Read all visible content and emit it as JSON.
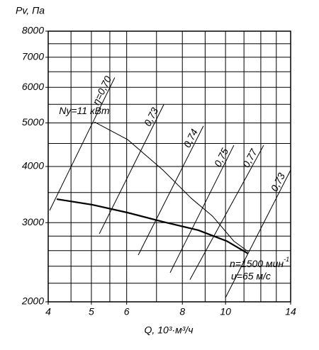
{
  "chart_data": {
    "type": "line",
    "y_label": "Pv, Па",
    "x_label": "Q, 10³·м³/ч",
    "xlog": true,
    "ylog": true,
    "grid": true,
    "xlim": [
      4,
      14
    ],
    "ylim": [
      2000,
      8000
    ],
    "xticks": [
      4,
      5,
      6,
      8,
      10,
      14
    ],
    "yticks": [
      2000,
      3000,
      4000,
      5000,
      6000,
      7000,
      8000
    ],
    "xgrid": [
      4,
      4.5,
      5,
      5.5,
      6,
      7,
      8,
      9,
      10,
      11,
      12,
      13,
      14
    ],
    "ygrid": [
      2000,
      2200,
      2400,
      2600,
      2800,
      3000,
      3500,
      4000,
      4500,
      5000,
      5500,
      6000,
      6500,
      7000,
      7500,
      8000
    ],
    "series": [
      {
        "color": "#000000",
        "width": 2.2,
        "x": [
          4.18,
          5.02,
          6.03,
          7.24,
          8.69,
          10.07,
          11.24
        ],
        "values": [
          3384,
          3289,
          3158,
          3013,
          2886,
          2729,
          2560
        ]
      },
      {
        "label": "Ny=11 кВт",
        "color": "#000000",
        "width": 1,
        "x": [
          5.08,
          6.03,
          7.24,
          8.38,
          9.35,
          10.44,
          11.24
        ],
        "values": [
          5024,
          4590,
          3926,
          3398,
          3102,
          2729,
          2587
        ]
      }
    ],
    "efficiency_lines": [
      {
        "label": "η=0,70",
        "x": [
          4.03,
          5.64
        ],
        "values": [
          3194,
          6304
        ]
      },
      {
        "label": "0,73",
        "x": [
          5.21,
          7.27
        ],
        "values": [
          2834,
          5495
        ]
      },
      {
        "label": "0,74",
        "x": [
          6.37,
          8.92
        ],
        "values": [
          2541,
          4924
        ]
      },
      {
        "label": "0,75",
        "x": [
          7.51,
          10.44
        ],
        "values": [
          2322,
          4459
        ]
      },
      {
        "label": "0,77",
        "x": [
          8.32,
          12.18
        ],
        "values": [
          2240,
          4459
        ]
      },
      {
        "label": "0,73",
        "x": [
          10.0,
          14
        ],
        "values": [
          2044,
          3928
        ]
      }
    ],
    "annotations": {
      "speed": "n=1500 мин",
      "speed_exp": "-1",
      "velocity": "u=65 м/с"
    }
  }
}
